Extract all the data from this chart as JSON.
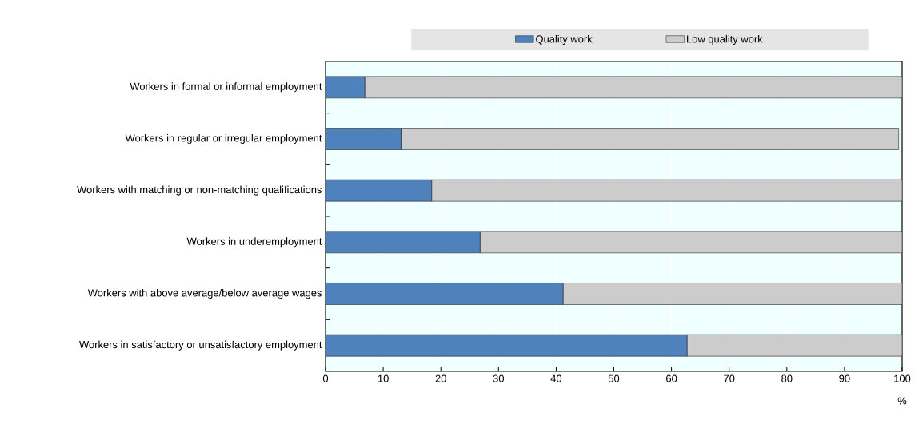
{
  "chart_data": {
    "type": "bar",
    "orientation": "horizontal",
    "stacked": true,
    "xlabel": "%",
    "categories": [
      "Workers in formal or informal employment",
      "Workers in regular or irregular employment",
      "Workers with matching or non-matching qualifications",
      "Workers in underemployment",
      "Workers with above average/below average wages",
      "Workers in satisfactory or unsatisfactory employment"
    ],
    "series": [
      {
        "name": "Quality work",
        "color": "#4f81bd",
        "values": [
          6.8,
          13.1,
          18.4,
          26.8,
          41.2,
          62.7
        ]
      },
      {
        "name": "Low quality work",
        "color": "#cccccc",
        "values": [
          93.2,
          86.3,
          81.6,
          73.2,
          58.8,
          37.3
        ]
      }
    ],
    "xlim": [
      0,
      100
    ],
    "xticks": [
      0,
      10,
      20,
      30,
      40,
      50,
      60,
      70,
      80,
      90,
      100
    ],
    "grid": "x",
    "legend": "top"
  }
}
